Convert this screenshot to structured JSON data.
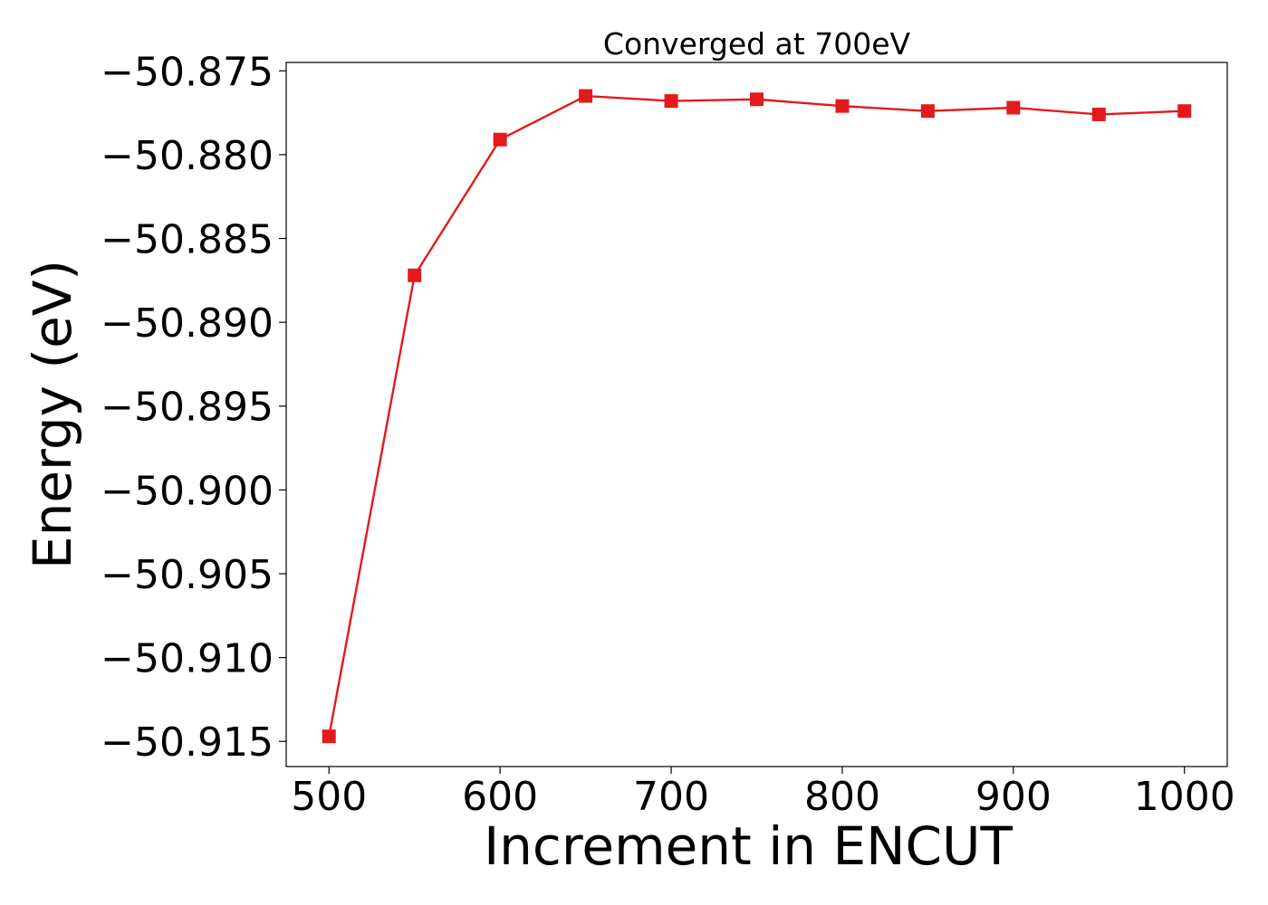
{
  "chart_data": {
    "type": "line",
    "title": "Converged at 700eV",
    "xlabel": "Increment in ENCUT",
    "ylabel": "Energy (eV)",
    "xlim": [
      475,
      1025
    ],
    "ylim": [
      -50.9165,
      -50.8745
    ],
    "xticks": [
      500,
      600,
      700,
      800,
      900,
      1000
    ],
    "yticks": [
      -50.915,
      -50.91,
      -50.905,
      -50.9,
      -50.895,
      -50.89,
      -50.885,
      -50.88,
      -50.875
    ],
    "xtick_labels": [
      "500",
      "600",
      "700",
      "800",
      "900",
      "1000"
    ],
    "ytick_labels": [
      "−50.915",
      "−50.910",
      "−50.905",
      "−50.900",
      "−50.895",
      "−50.890",
      "−50.885",
      "−50.880",
      "−50.875"
    ],
    "grid": false,
    "legend": "none",
    "series": [
      {
        "color": "#e31a1c",
        "marker": "square",
        "x": [
          500,
          550,
          600,
          650,
          700,
          750,
          800,
          850,
          900,
          950,
          1000
        ],
        "y": [
          -50.9147,
          -50.8872,
          -50.8791,
          -50.8765,
          -50.8768,
          -50.8767,
          -50.8771,
          -50.8774,
          -50.8772,
          -50.8776,
          -50.8774
        ]
      }
    ]
  }
}
